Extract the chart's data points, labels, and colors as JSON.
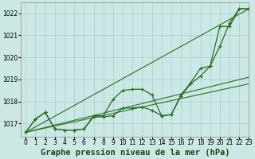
{
  "bg_color": "#cce8e4",
  "grid_color": "#aacccc",
  "xlabel": "Graphe pression niveau de la mer (hPa)",
  "xlabel_fontsize": 7.5,
  "xlim": [
    -0.5,
    23
  ],
  "ylim": [
    1016.4,
    1022.5
  ],
  "yticks": [
    1017,
    1018,
    1019,
    1020,
    1021,
    1022
  ],
  "xticks": [
    0,
    1,
    2,
    3,
    4,
    5,
    6,
    7,
    8,
    9,
    10,
    11,
    12,
    13,
    14,
    15,
    16,
    17,
    18,
    19,
    20,
    21,
    22,
    23
  ],
  "line_color": "#2a6a2a",
  "straight_color": "#3a7a3a",
  "x_values": [
    0,
    1,
    2,
    3,
    4,
    5,
    6,
    7,
    8,
    9,
    10,
    11,
    12,
    13,
    14,
    15,
    16,
    17,
    18,
    19,
    20,
    21,
    22,
    23
  ],
  "series_with_markers": [
    [
      1016.6,
      1017.2,
      1017.5,
      1016.75,
      1016.7,
      1016.7,
      1016.75,
      1017.3,
      1017.3,
      1017.35,
      1017.7,
      1017.7,
      1017.75,
      1017.6,
      1017.35,
      1017.4,
      1018.25,
      1018.8,
      1019.15,
      1019.6,
      1021.4,
      1021.4,
      1022.2,
      1022.2
    ],
    [
      1016.6,
      1017.2,
      1017.5,
      1016.75,
      1016.7,
      1016.7,
      1016.75,
      1017.35,
      1017.35,
      1018.1,
      1018.5,
      1018.55,
      1018.55,
      1018.3,
      1017.35,
      1017.4,
      1018.3,
      1018.85,
      1019.5,
      1019.6,
      1020.5,
      1021.55,
      1022.2,
      1022.2
    ]
  ],
  "series_straight": [
    [
      [
        0,
        1016.6
      ],
      [
        23,
        1022.2
      ]
    ],
    [
      [
        0,
        1016.6
      ],
      [
        23,
        1019.1
      ]
    ],
    [
      [
        0,
        1016.6
      ],
      [
        23,
        1018.8
      ]
    ]
  ]
}
